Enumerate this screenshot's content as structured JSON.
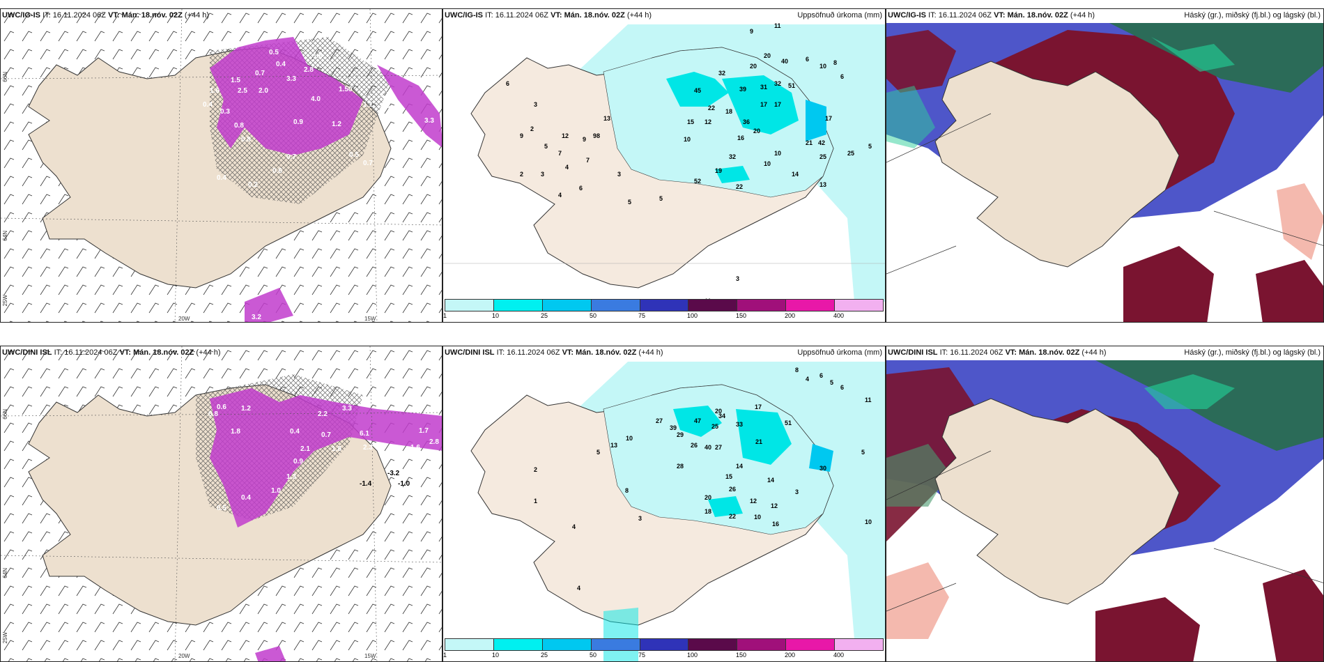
{
  "panels": [
    {
      "id": "p1",
      "model": "UWC/IG-IS",
      "it_label": "IT:",
      "it_value": "16.11.2024 06Z",
      "vt_label": "VT:",
      "vt_value": "Mán. 18.nóv. 02Z",
      "lead": "(+44 h)",
      "title_right": "",
      "type": "precip-type"
    },
    {
      "id": "p2",
      "model": "UWC/IG-IS",
      "it_label": "IT:",
      "it_value": "16.11.2024 06Z",
      "vt_label": "VT:",
      "vt_value": "Mán. 18.nóv. 02Z",
      "lead": "(+44 h)",
      "title_right": "Uppsöfnuð úrkoma (mm)",
      "type": "accum"
    },
    {
      "id": "p3",
      "model": "UWC/IG-IS",
      "it_label": "IT:",
      "it_value": "16.11.2024 06Z",
      "vt_label": "VT:",
      "vt_value": "Mán. 18.nóv. 02Z",
      "lead": "(+44 h)",
      "title_right": "Háský (gr.), miðský (fj.bl.) og lágský (bl.)",
      "type": "cloud"
    },
    {
      "id": "p4",
      "model": "UWC/DINI ISL",
      "it_label": "IT:",
      "it_value": "16.11.2024 06Z",
      "vt_label": "VT:",
      "vt_value": "Mán. 18.nóv. 02Z",
      "lead": "(+44 h)",
      "title_right": "",
      "type": "precip-type"
    },
    {
      "id": "p5",
      "model": "UWC/DINI ISL",
      "it_label": "IT:",
      "it_value": "16.11.2024 06Z",
      "vt_label": "VT:",
      "vt_value": "Mán. 18.nóv. 02Z",
      "lead": "(+44 h)",
      "title_right": "Uppsöfnuð úrkoma (mm)",
      "type": "accum"
    },
    {
      "id": "p6",
      "model": "UWC/DINI ISL",
      "it_label": "IT:",
      "it_value": "16.11.2024 06Z",
      "vt_label": "VT:",
      "vt_value": "Mán. 18.nóv. 02Z",
      "lead": "(+44 h)",
      "title_right": "Háský (gr.), miðský (fj.bl.) og lágský (bl.)",
      "type": "cloud"
    }
  ],
  "axes": {
    "lat66": "66N",
    "lat64": "64N",
    "lon25": "25W",
    "lon20": "20W",
    "lon15": "15W"
  },
  "colorbar": {
    "labels": [
      "1",
      "10",
      "25",
      "50",
      "75",
      "100",
      "150",
      "200",
      "400"
    ],
    "colors": [
      "#c4f7f7",
      "#00f0f0",
      "#00c8f0",
      "#3a7be0",
      "#2f33b8",
      "#5a0a4a",
      "#a0107a",
      "#e818a8",
      "#f2b0f0"
    ]
  },
  "p1_values": [
    "0.5",
    "0.4",
    "0.7",
    "1.5",
    "2.8",
    "1.8",
    "3.3",
    "4.0",
    "2.5",
    "2.0",
    "1.2",
    "1.50",
    "1.7",
    "3.3",
    "0.9",
    "1.6",
    "0.3",
    "0.6",
    "0.5",
    "0.4",
    "0.7",
    "0.8",
    "0.4",
    "0.2",
    "1.1",
    "0.7",
    "3.3",
    "0.8",
    "3.2"
  ],
  "p4_values": [
    "0.6",
    "1.2",
    "1.8",
    "2.2",
    "2.1",
    "0.7",
    "1.8",
    "0.4",
    "3.3",
    "0.5",
    "1.0",
    "0.9",
    "2.3",
    "6.1",
    "1.7",
    "2.8",
    "1.6",
    "-1.4",
    "-3.2",
    "-1.0",
    "0.8",
    "0.4",
    "1.3"
  ],
  "p2_values": [
    "9",
    "11",
    "20",
    "20",
    "40",
    "6",
    "10",
    "8",
    "6",
    "39",
    "45",
    "32",
    "31",
    "32",
    "51",
    "17",
    "17",
    "22",
    "18",
    "36",
    "15",
    "12",
    "17",
    "10",
    "20",
    "21",
    "42",
    "25",
    "16",
    "5",
    "25",
    "7",
    "9",
    "12",
    "9",
    "8",
    "5",
    "6",
    "3",
    "7",
    "6",
    "4",
    "5",
    "5",
    "2",
    "2",
    "3",
    "4",
    "3",
    "13",
    "10",
    "19",
    "14",
    "10",
    "22",
    "52",
    "32",
    "3",
    "11",
    "13",
    "9"
  ],
  "p5_values": [
    "8",
    "4",
    "6",
    "5",
    "6",
    "11",
    "20",
    "17",
    "47",
    "34",
    "27",
    "25",
    "33",
    "51",
    "29",
    "39",
    "26",
    "27",
    "21",
    "40",
    "13",
    "10",
    "8",
    "28",
    "14",
    "15",
    "26",
    "20",
    "12",
    "14",
    "10",
    "3",
    "18",
    "22",
    "16",
    "12",
    "5",
    "2",
    "1",
    "4",
    "4",
    "3",
    "30",
    "5",
    "10"
  ]
}
